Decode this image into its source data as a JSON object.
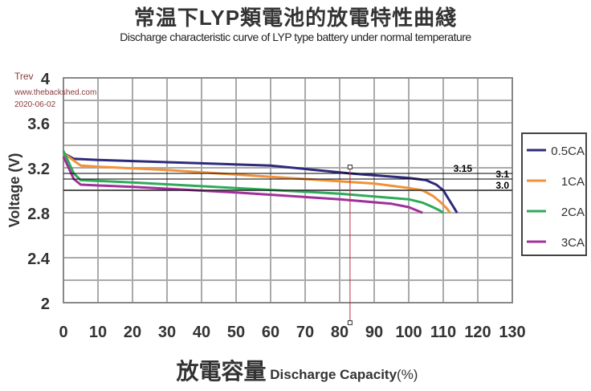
{
  "title_cn": "常温下LYP類電池的放電特性曲綫",
  "title_en": "Discharge characteristic curve of LYP  type battery under normal temperature",
  "annotation": {
    "author": "Trev",
    "site": "www.thebackshed.com",
    "date": "2020-06-02"
  },
  "chart_data": {
    "type": "line",
    "xlabel_cn": "放電容量",
    "xlabel": "Discharge Capacity",
    "xlabel_unit": "(%)",
    "ylabel": "Voltage (V)",
    "xlim": [
      0,
      130
    ],
    "ylim": [
      2,
      4
    ],
    "xticks": [
      0,
      10,
      20,
      30,
      40,
      50,
      60,
      70,
      80,
      90,
      100,
      110,
      120,
      130
    ],
    "yticks": [
      "2",
      "2.4",
      "2.8",
      "3.2",
      "3.6",
      "4"
    ],
    "grid": true,
    "legend_placement": "right",
    "series": [
      {
        "name": "0.5CA",
        "color": "#2e2a7a",
        "x": [
          0,
          3,
          10,
          30,
          60,
          83,
          100,
          105,
          108,
          110,
          112,
          114
        ],
        "y": [
          3.33,
          3.28,
          3.27,
          3.25,
          3.22,
          3.15,
          3.11,
          3.09,
          3.05,
          3.0,
          2.9,
          2.8
        ]
      },
      {
        "name": "1CA",
        "color": "#f0923a",
        "x": [
          0,
          5,
          10,
          30,
          60,
          90,
          100,
          104,
          107,
          109,
          111,
          112
        ],
        "y": [
          3.33,
          3.22,
          3.21,
          3.18,
          3.12,
          3.06,
          3.02,
          3.0,
          2.95,
          2.9,
          2.84,
          2.8
        ]
      },
      {
        "name": "2CA",
        "color": "#2eaa5a",
        "x": [
          0,
          3,
          5,
          20,
          50,
          80,
          100,
          104,
          107,
          109,
          110
        ],
        "y": [
          3.35,
          3.15,
          3.09,
          3.07,
          3.02,
          2.97,
          2.92,
          2.89,
          2.85,
          2.82,
          2.8
        ]
      },
      {
        "name": "3CA",
        "color": "#a0309a",
        "x": [
          0,
          3,
          5,
          20,
          50,
          80,
          95,
          100,
          104
        ],
        "y": [
          3.3,
          3.1,
          3.05,
          3.03,
          2.98,
          2.92,
          2.88,
          2.85,
          2.8
        ]
      }
    ],
    "reference_lines": [
      {
        "y": 3.15,
        "label": "3.15"
      },
      {
        "y": 3.1,
        "label": "3.1"
      },
      {
        "y": 3.0,
        "label": "3.0"
      }
    ],
    "marker_line": {
      "x": 83,
      "color": "#c0303a"
    }
  }
}
